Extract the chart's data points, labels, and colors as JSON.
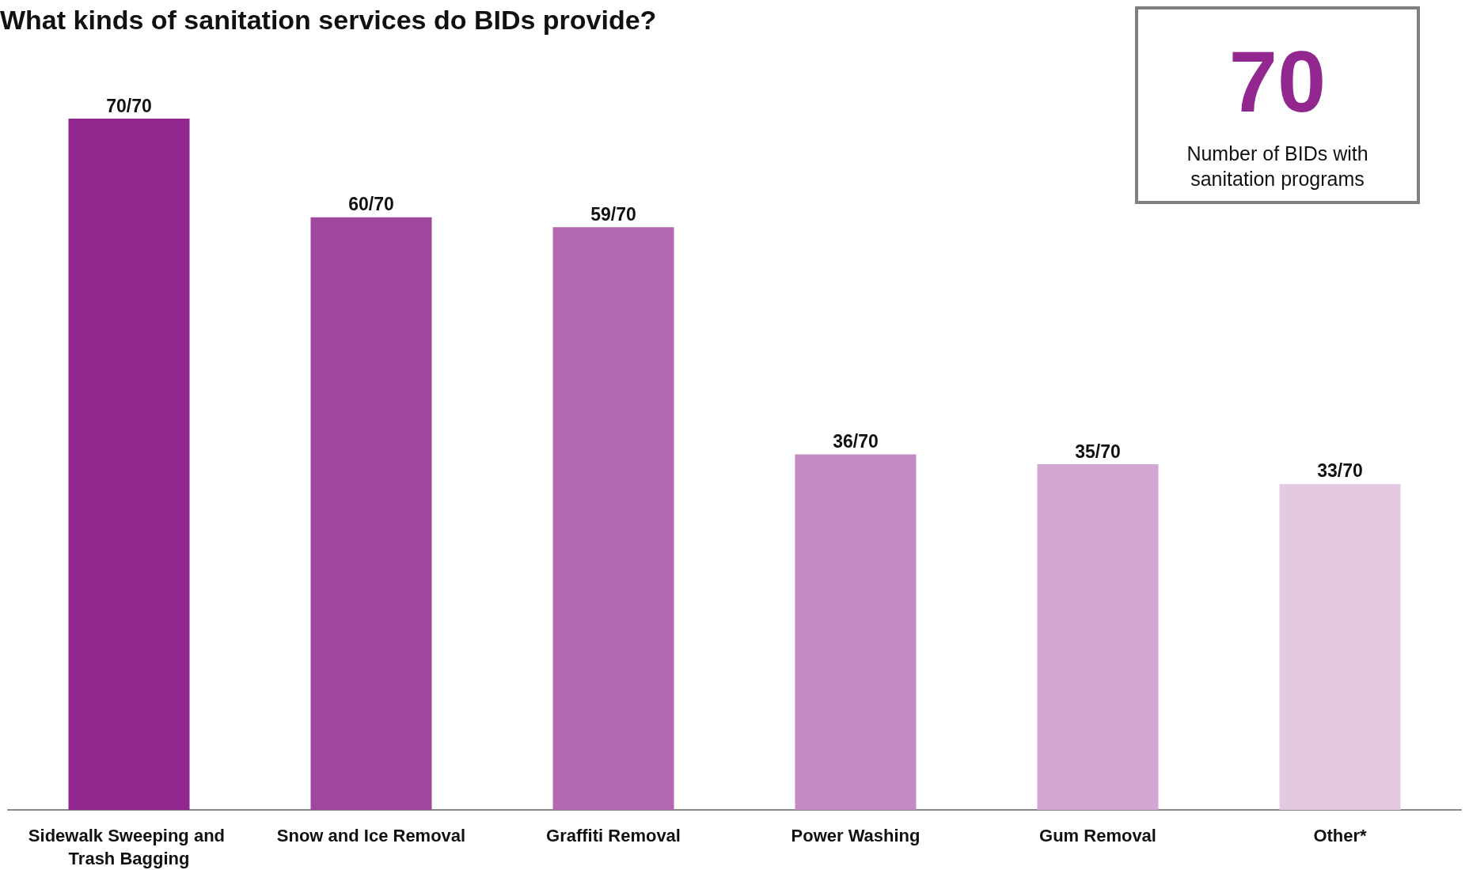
{
  "chart_data": {
    "type": "bar",
    "title": "What kinds of sanitation services do BIDs provide?",
    "categories": [
      "Sidewalk Sweeping and Trash Bagging",
      "Snow and Ice Removal",
      "Graffiti Removal",
      "Power Washing",
      "Gum Removal",
      "Other*"
    ],
    "values": [
      70,
      60,
      59,
      36,
      35,
      33
    ],
    "value_labels": [
      "70/70",
      "60/70",
      "59/70",
      "36/70",
      "35/70",
      "33/70"
    ],
    "colors": [
      "#92278f",
      "#a0479d",
      "#b369b1",
      "#c48bc2",
      "#d4a6d2",
      "#e3c9e2"
    ],
    "annotations": [
      "70",
      "Number of BIDs with sanitation programs"
    ]
  }
}
